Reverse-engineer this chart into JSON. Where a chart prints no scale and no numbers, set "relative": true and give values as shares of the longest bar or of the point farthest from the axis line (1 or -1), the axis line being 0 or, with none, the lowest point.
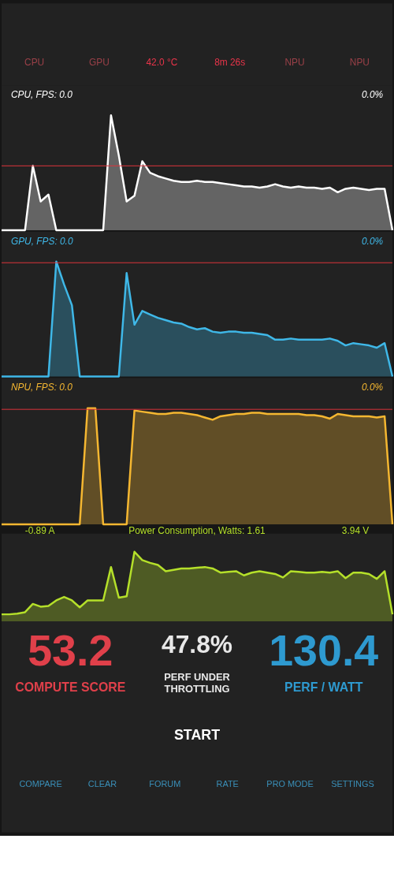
{
  "chart_data": [
    {
      "type": "other",
      "annotations": [
        "CPU",
        "GPU",
        "42.0 °C",
        "8m 26s",
        "NPU",
        "NPU"
      ],
      "colors": [
        "#9a4048",
        "#9a4048",
        "#e8344a",
        "#e8344a",
        "#9a4048",
        "#9a4048"
      ]
    },
    {
      "type": "area",
      "title": "CPU, FPS:  0.0",
      "annotations": [
        "0.0%"
      ],
      "relative": true,
      "tick_labels": false,
      "ref_lines": [
        {
          "axis": "y",
          "value": 0.56,
          "color": "#e0343c"
        }
      ],
      "categories": [
        null,
        null,
        null,
        null,
        null,
        null,
        null,
        null,
        null,
        null,
        null,
        null,
        null,
        null,
        null,
        null,
        null,
        null,
        null,
        null,
        null,
        null,
        null,
        null,
        null,
        null,
        null,
        null,
        null,
        null,
        null,
        null,
        null,
        null,
        null,
        null,
        null,
        null,
        null,
        null,
        null,
        null,
        null,
        null,
        null,
        null,
        null,
        null,
        null,
        null,
        null
      ],
      "series": [
        {
          "color": "#ffffff",
          "values": [
            0,
            0,
            0,
            0,
            0.56,
            0.25,
            0.31,
            0,
            0,
            0,
            0,
            0,
            0,
            0,
            1.0,
            0.65,
            0.25,
            0.3,
            0.6,
            0.5,
            0.47,
            0.45,
            0.43,
            0.42,
            0.42,
            0.43,
            0.42,
            0.42,
            0.41,
            0.4,
            0.39,
            0.38,
            0.38,
            0.37,
            0.38,
            0.4,
            0.38,
            0.37,
            0.38,
            0.37,
            0.37,
            0.36,
            0.37,
            0.33,
            0.36,
            0.37,
            0.36,
            0.35,
            0.36,
            0.36,
            0
          ]
        }
      ]
    },
    {
      "type": "area",
      "title": "GPU, FPS:  0.0",
      "annotations": [
        "0.0%"
      ],
      "relative": true,
      "tick_labels": false,
      "ref_lines": [
        {
          "axis": "y",
          "value": 0.99,
          "color": "#e0343c"
        }
      ],
      "categories": [
        null,
        null,
        null,
        null,
        null,
        null,
        null,
        null,
        null,
        null,
        null,
        null,
        null,
        null,
        null,
        null,
        null,
        null,
        null,
        null,
        null,
        null,
        null,
        null,
        null,
        null,
        null,
        null,
        null,
        null,
        null,
        null,
        null,
        null,
        null,
        null,
        null,
        null,
        null,
        null,
        null,
        null,
        null,
        null,
        null,
        null,
        null,
        null,
        null,
        null,
        null
      ],
      "series": [
        {
          "color": "#3fb8e8",
          "values": [
            0,
            0,
            0,
            0,
            0,
            0,
            0,
            1.0,
            0.8,
            0.62,
            0,
            0,
            0,
            0,
            0,
            0,
            0.9,
            0.45,
            0.57,
            0.54,
            0.51,
            0.49,
            0.47,
            0.46,
            0.43,
            0.41,
            0.42,
            0.39,
            0.38,
            0.39,
            0.39,
            0.38,
            0.38,
            0.37,
            0.36,
            0.32,
            0.32,
            0.33,
            0.32,
            0.32,
            0.32,
            0.32,
            0.33,
            0.31,
            0.27,
            0.29,
            0.28,
            0.27,
            0.25,
            0.29,
            0
          ]
        }
      ]
    },
    {
      "type": "area",
      "title": "NPU, FPS:  0.0",
      "annotations": [
        "0.0%"
      ],
      "relative": true,
      "tick_labels": false,
      "ref_lines": [
        {
          "axis": "y",
          "value": 0.99,
          "color": "#e0343c"
        }
      ],
      "categories": [
        null,
        null,
        null,
        null,
        null,
        null,
        null,
        null,
        null,
        null,
        null,
        null,
        null,
        null,
        null,
        null,
        null,
        null,
        null,
        null,
        null,
        null,
        null,
        null,
        null,
        null,
        null,
        null,
        null,
        null,
        null,
        null,
        null,
        null,
        null,
        null,
        null,
        null,
        null,
        null,
        null,
        null,
        null,
        null,
        null,
        null,
        null,
        null,
        null,
        null,
        null
      ],
      "series": [
        {
          "color": "#f5b731",
          "values": [
            0,
            0,
            0,
            0,
            0,
            0,
            0,
            0,
            0,
            0,
            0,
            1.0,
            1.0,
            0,
            0,
            0,
            0,
            0.98,
            0.97,
            0.96,
            0.95,
            0.95,
            0.96,
            0.96,
            0.95,
            0.94,
            0.92,
            0.9,
            0.93,
            0.94,
            0.95,
            0.95,
            0.96,
            0.96,
            0.95,
            0.95,
            0.95,
            0.95,
            0.95,
            0.94,
            0.94,
            0.93,
            0.91,
            0.95,
            0.94,
            0.93,
            0.93,
            0.93,
            0.92,
            0.93,
            0
          ]
        }
      ]
    },
    {
      "type": "area",
      "title": "Power Consumption, Watts:   1.61",
      "annotations": [
        "-0.89 A",
        "3.94 V"
      ],
      "relative": true,
      "tick_labels": false,
      "categories": [
        null,
        null,
        null,
        null,
        null,
        null,
        null,
        null,
        null,
        null,
        null,
        null,
        null,
        null,
        null,
        null,
        null,
        null,
        null,
        null,
        null,
        null,
        null,
        null,
        null,
        null,
        null,
        null,
        null,
        null,
        null,
        null,
        null,
        null,
        null,
        null,
        null,
        null,
        null,
        null,
        null,
        null,
        null,
        null,
        null,
        null,
        null,
        null,
        null,
        null,
        null
      ],
      "series": [
        {
          "color": "#b5e02a",
          "values": [
            0.1,
            0.1,
            0.11,
            0.13,
            0.25,
            0.21,
            0.22,
            0.3,
            0.35,
            0.3,
            0.2,
            0.3,
            0.3,
            0.3,
            0.78,
            0.34,
            0.36,
            1.0,
            0.88,
            0.84,
            0.81,
            0.72,
            0.74,
            0.76,
            0.76,
            0.77,
            0.78,
            0.76,
            0.7,
            0.71,
            0.72,
            0.66,
            0.7,
            0.72,
            0.7,
            0.68,
            0.63,
            0.72,
            0.71,
            0.7,
            0.7,
            0.71,
            0.7,
            0.72,
            0.62,
            0.7,
            0.7,
            0.68,
            0.61,
            0.72,
            0.1
          ]
        }
      ]
    },
    {
      "type": "other",
      "annotations": [
        "53.2",
        "COMPUTE SCORE",
        "47.8%",
        "PERF UNDER",
        "THROTTLING",
        "130.4",
        "PERF / WATT",
        "START",
        "COMPARE",
        "CLEAR",
        "FORUM",
        "RATE",
        "PRO MODE",
        "SETTINGS"
      ],
      "colors": [
        "#e0404a",
        "#e0404a",
        "#e8e8e8",
        "#e8e8e8",
        "#e8e8e8",
        "#2e9ad0",
        "#2e9ad0",
        "#ffffff",
        "#3a8fb8",
        "#3a8fb8",
        "#3a8fb8",
        "#3a8fb8",
        "#3a8fb8",
        "#3a8fb8"
      ]
    }
  ]
}
